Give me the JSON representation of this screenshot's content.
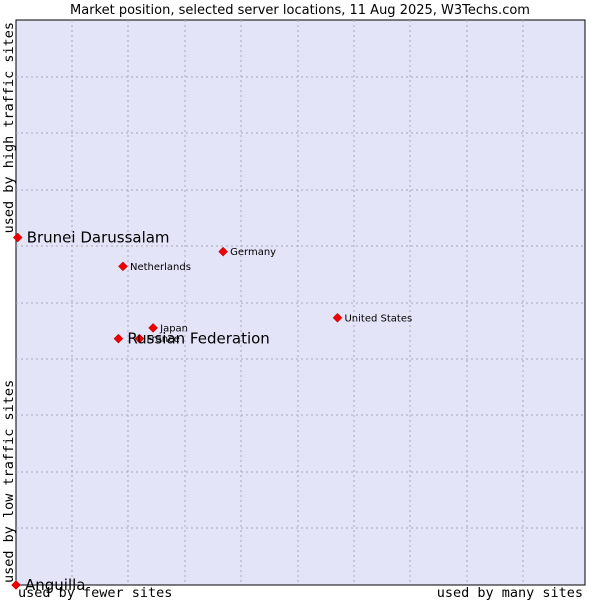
{
  "chart_data": {
    "type": "scatter",
    "title": "Market position, selected server locations, 11 Aug 2025, W3Techs.com",
    "xlabel_left": "used by fewer sites",
    "xlabel_right": "used by many sites",
    "ylabel_top": "used by high traffic sites",
    "ylabel_bottom": "used by low traffic sites",
    "xlim": [
      0,
      100
    ],
    "ylim": [
      0,
      100
    ],
    "grid": true,
    "marker_color": "#ee0000",
    "plot_background": "#e4e4f8",
    "points": [
      {
        "label": "Brunei Darussalam",
        "x": 0.3,
        "y": 61.5,
        "emphasis": true
      },
      {
        "label": "Germany",
        "x": 36.4,
        "y": 59.0,
        "emphasis": false
      },
      {
        "label": "Netherlands",
        "x": 18.8,
        "y": 56.4,
        "emphasis": false
      },
      {
        "label": "United States",
        "x": 56.5,
        "y": 47.3,
        "emphasis": false
      },
      {
        "label": "Japan",
        "x": 24.1,
        "y": 45.5,
        "emphasis": false
      },
      {
        "label": "France",
        "x": 21.7,
        "y": 43.6,
        "emphasis": false
      },
      {
        "label": "Russian Federation",
        "x": 18.0,
        "y": 43.6,
        "emphasis": true
      },
      {
        "label": "Anguilla",
        "x": 0.0,
        "y": 0.0,
        "emphasis": true
      }
    ]
  }
}
